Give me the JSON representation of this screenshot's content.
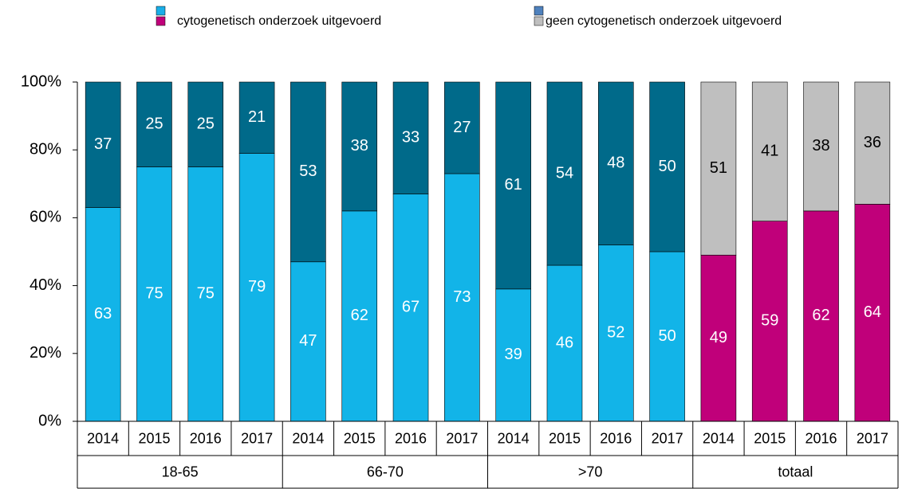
{
  "chart_data": {
    "type": "stacked_bar",
    "categories": [
      "2014",
      "2015",
      "2016",
      "2017",
      "2014",
      "2015",
      "2016",
      "2017",
      "2014",
      "2015",
      "2016",
      "2017",
      "2014",
      "2015",
      "2016",
      "2017"
    ],
    "groups": [
      "18-65",
      "66-70",
      ">70",
      "totaal"
    ],
    "series": [
      {
        "name": "cytogenetisch onderzoek uitgevoerd",
        "legend_colors": [
          "#19aee8",
          "#c0007a"
        ],
        "colors": [
          "#12b4e8",
          "#12b4e8",
          "#12b4e8",
          "#12b4e8",
          "#12b4e8",
          "#12b4e8",
          "#12b4e8",
          "#12b4e8",
          "#12b4e8",
          "#12b4e8",
          "#12b4e8",
          "#12b4e8",
          "#c0007a",
          "#c0007a",
          "#c0007a",
          "#c0007a"
        ],
        "values": [
          63,
          75,
          75,
          79,
          47,
          62,
          67,
          73,
          39,
          46,
          52,
          50,
          49,
          59,
          62,
          64
        ]
      },
      {
        "name": "geen cytogenetisch onderzoek uitgevoerd",
        "legend_colors": [
          "#4f81bd",
          "#bfbfbf"
        ],
        "colors": [
          "#006a8a",
          "#006a8a",
          "#006a8a",
          "#006a8a",
          "#006a8a",
          "#006a8a",
          "#006a8a",
          "#006a8a",
          "#006a8a",
          "#006a8a",
          "#006a8a",
          "#006a8a",
          "#bfbfbf",
          "#bfbfbf",
          "#bfbfbf",
          "#bfbfbf"
        ],
        "values": [
          37,
          25,
          25,
          21,
          53,
          38,
          33,
          27,
          61,
          54,
          48,
          50,
          51,
          41,
          38,
          36
        ]
      }
    ],
    "ylim": [
      0,
      100
    ],
    "yticks": [
      {
        "value": 0,
        "label": "0%"
      },
      {
        "value": 20,
        "label": "20%"
      },
      {
        "value": 40,
        "label": "40%"
      },
      {
        "value": 60,
        "label": "60%"
      },
      {
        "value": 80,
        "label": "80%"
      },
      {
        "value": 100,
        "label": "100%"
      }
    ]
  }
}
